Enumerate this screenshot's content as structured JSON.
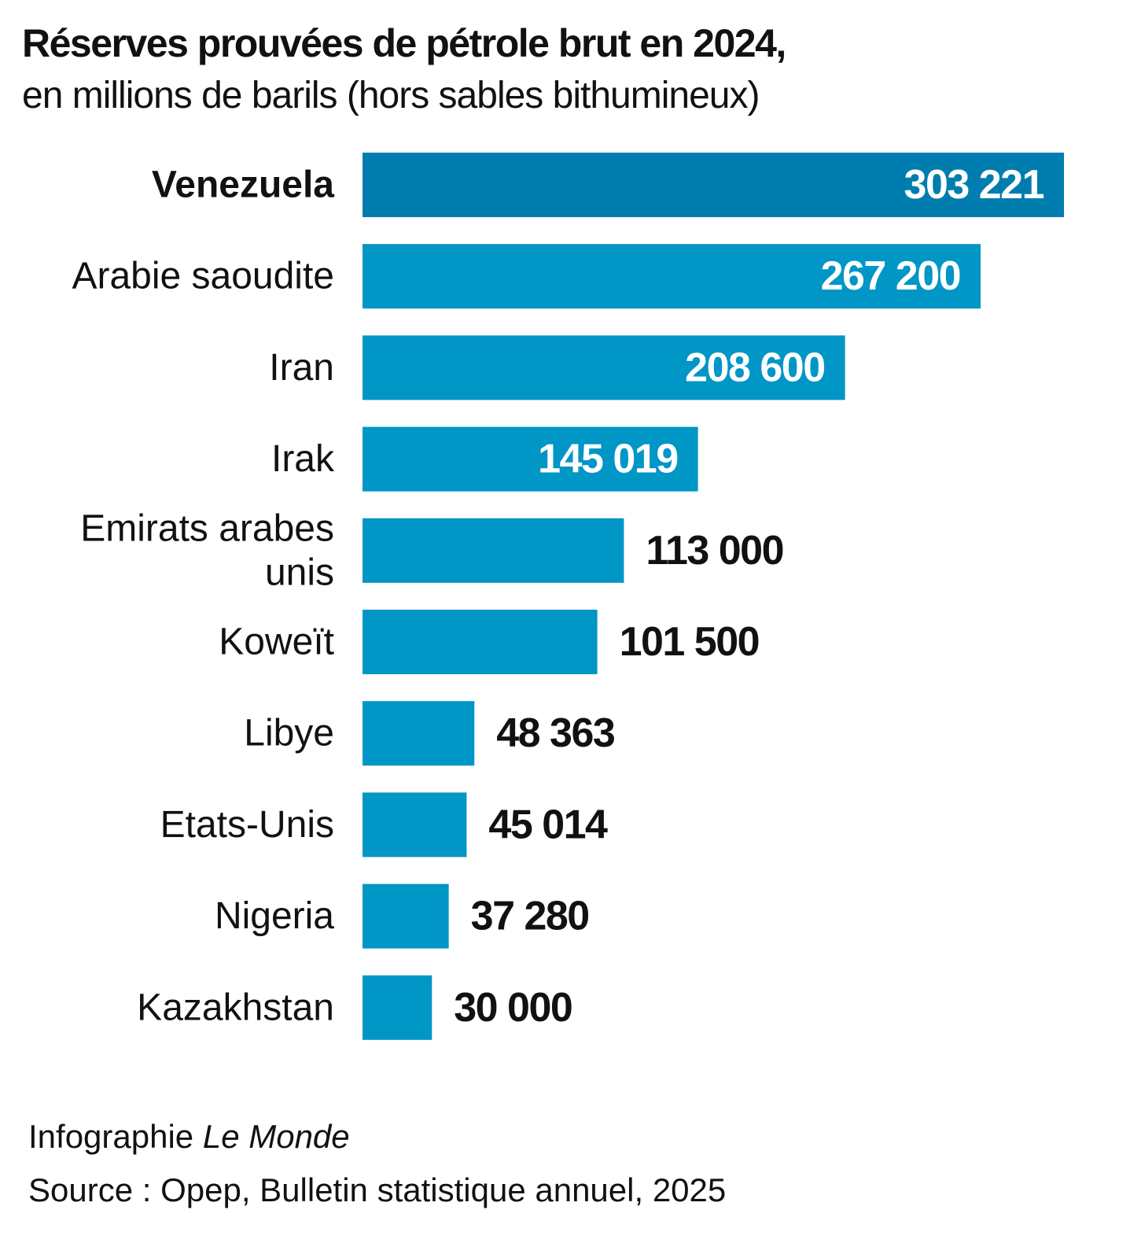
{
  "header": {
    "title": "Réserves prouvées de pétrole brut en 2024,",
    "subtitle": "en millions de barils (hors sables bithumineux)"
  },
  "footer": {
    "credit_prefix": "Infographie ",
    "credit_publication": "Le Monde",
    "source": "Source : Opep, Bulletin statistique annuel, 2025"
  },
  "colors": {
    "bar": "#0096C6",
    "bar_highlight": "#007DAF",
    "label_inside": "#ffffff",
    "label_outside": "#111111"
  },
  "chart_data": {
    "type": "bar",
    "orientation": "horizontal",
    "title": "Réserves prouvées de pétrole brut en 2024,",
    "subtitle": "en millions de barils (hors sables bithumineux)",
    "unit": "millions de barils",
    "highlighted": "Venezuela",
    "grid": false,
    "legend": "none",
    "xlim": [
      0,
      303221
    ],
    "categories": [
      [
        "Venezuela"
      ],
      [
        "Arabie saoudite"
      ],
      [
        "Iran"
      ],
      [
        "Irak"
      ],
      [
        "Emirats arabes",
        "unis"
      ],
      [
        "Koweït"
      ],
      [
        "Libye"
      ],
      [
        "Etats-Unis"
      ],
      [
        "Nigeria"
      ],
      [
        "Kazakhstan"
      ]
    ],
    "values": [
      303221,
      267200,
      208600,
      145019,
      113000,
      101500,
      48363,
      45014,
      37280,
      30000
    ],
    "value_labels": [
      "303 221",
      "267 200",
      "208 600",
      "145 019",
      "113 000",
      "101 500",
      "48 363",
      "45 014",
      "37 280",
      "30 000"
    ]
  }
}
